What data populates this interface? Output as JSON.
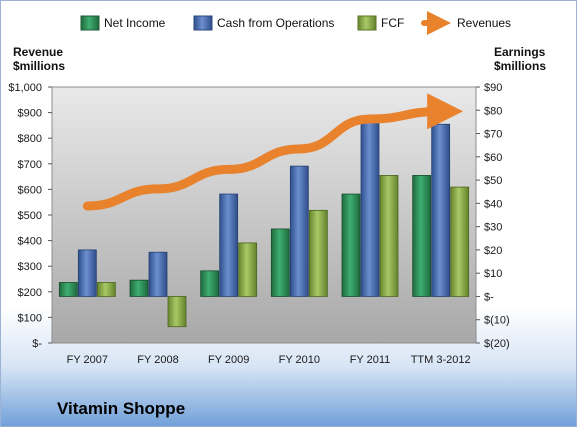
{
  "chart_data": {
    "type": "bar",
    "company": "Vitamin Shoppe",
    "categories": [
      "FY 2007",
      "FY 2008",
      "FY 2009",
      "FY 2010",
      "FY 2011",
      "TTM 3-2012"
    ],
    "series": [
      {
        "name": "Net Income",
        "axis": "right",
        "values": [
          6,
          7,
          11,
          29,
          44,
          52
        ],
        "color": "#2e8b57"
      },
      {
        "name": "Cash from Operations",
        "axis": "right",
        "values": [
          20,
          19,
          44,
          56,
          75,
          74
        ],
        "color": "#4a6fb0"
      },
      {
        "name": "FCF",
        "axis": "right",
        "values": [
          6,
          -13,
          23,
          37,
          52,
          47
        ],
        "color": "#8fb04a"
      },
      {
        "name": "Revenues",
        "axis": "left",
        "type": "line",
        "values": [
          535,
          602,
          678,
          758,
          875,
          905
        ],
        "color": "#e8822d"
      }
    ],
    "y_left": {
      "label_line1": "Revenue",
      "label_line2": "$millions",
      "range": [
        0,
        1000
      ],
      "ticks": [
        "$-",
        "$100",
        "$200",
        "$300",
        "$400",
        "$500",
        "$600",
        "$700",
        "$800",
        "$900",
        "$1,000"
      ]
    },
    "y_right": {
      "label_line1": "Earnings",
      "label_line2": "$millions",
      "range": [
        -20,
        90
      ],
      "ticks": [
        "$(20)",
        "$(10)",
        "$-",
        "$10",
        "$20",
        "$30",
        "$40",
        "$50",
        "$60",
        "$70",
        "$80",
        "$90"
      ]
    },
    "legend_position": "top",
    "grid": false
  }
}
